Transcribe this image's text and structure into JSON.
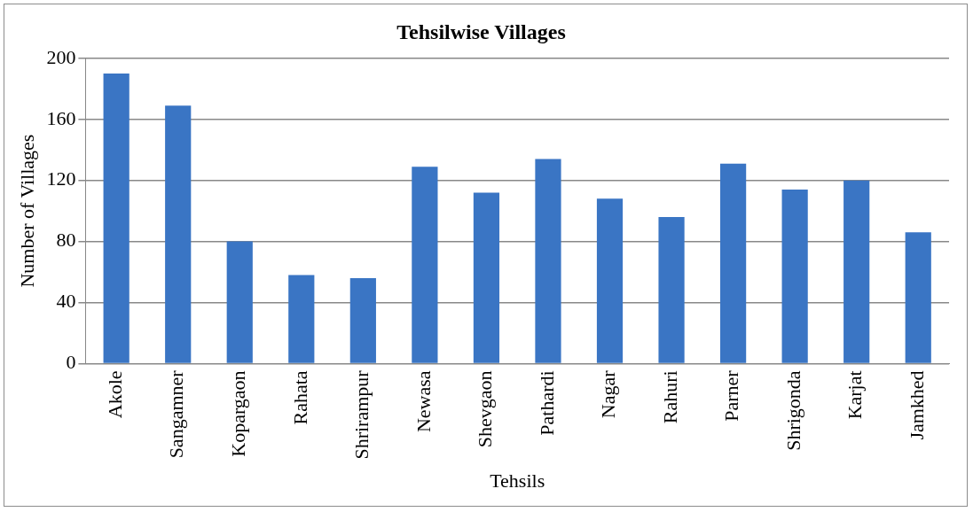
{
  "chart_data": {
    "type": "bar",
    "title": "Tehsilwise Villages",
    "xlabel": "Tehsils",
    "ylabel": "Number of Villages",
    "categories": [
      "Akole",
      "Sangamner",
      "Kopargaon",
      "Rahata",
      "Shrirampur",
      "Newasa",
      "Shevgaon",
      "Pathardi",
      "Nagar",
      "Rahuri",
      "Parner",
      "Shrigonda",
      "Karjat",
      "Jamkhed"
    ],
    "values": [
      190,
      169,
      80,
      58,
      56,
      129,
      112,
      134,
      108,
      96,
      131,
      114,
      120,
      86
    ],
    "color": "#3a75c4",
    "ylim": [
      0,
      200
    ],
    "yticks": [
      0,
      40,
      80,
      120,
      160,
      200
    ],
    "grid": "y",
    "legend": false
  }
}
